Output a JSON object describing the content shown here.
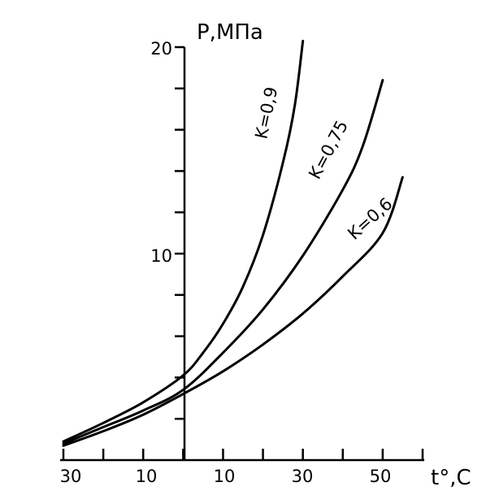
{
  "chart_data": {
    "type": "line",
    "title": "",
    "ylabel": "P,МПа",
    "xlabel": "t°,C",
    "x_tick_labels": [
      "30",
      "10",
      "10",
      "30",
      "50"
    ],
    "y_tick_labels": [
      "20",
      "10"
    ],
    "xlim": [
      -30,
      60
    ],
    "ylim": [
      0,
      20
    ],
    "grid": false,
    "series": [
      {
        "name": "K=0,9",
        "x": [
          -30,
          -20,
          -10,
          0,
          5,
          10,
          15,
          20,
          25,
          28,
          30
        ],
        "y": [
          0.9,
          1.8,
          2.8,
          4.1,
          5.2,
          6.6,
          8.4,
          10.9,
          14.4,
          17.2,
          20.3
        ]
      },
      {
        "name": "K=0,75",
        "x": [
          -30,
          -20,
          -10,
          0,
          10,
          20,
          30,
          40,
          45,
          50
        ],
        "y": [
          0.8,
          1.6,
          2.4,
          3.4,
          5.2,
          7.3,
          9.9,
          13.1,
          15.2,
          18.4
        ]
      },
      {
        "name": "K=0,6",
        "x": [
          -30,
          -20,
          -10,
          0,
          10,
          20,
          30,
          40,
          50,
          55
        ],
        "y": [
          0.7,
          1.4,
          2.2,
          3.2,
          4.3,
          5.6,
          7.1,
          8.9,
          11.0,
          13.7
        ]
      }
    ]
  }
}
